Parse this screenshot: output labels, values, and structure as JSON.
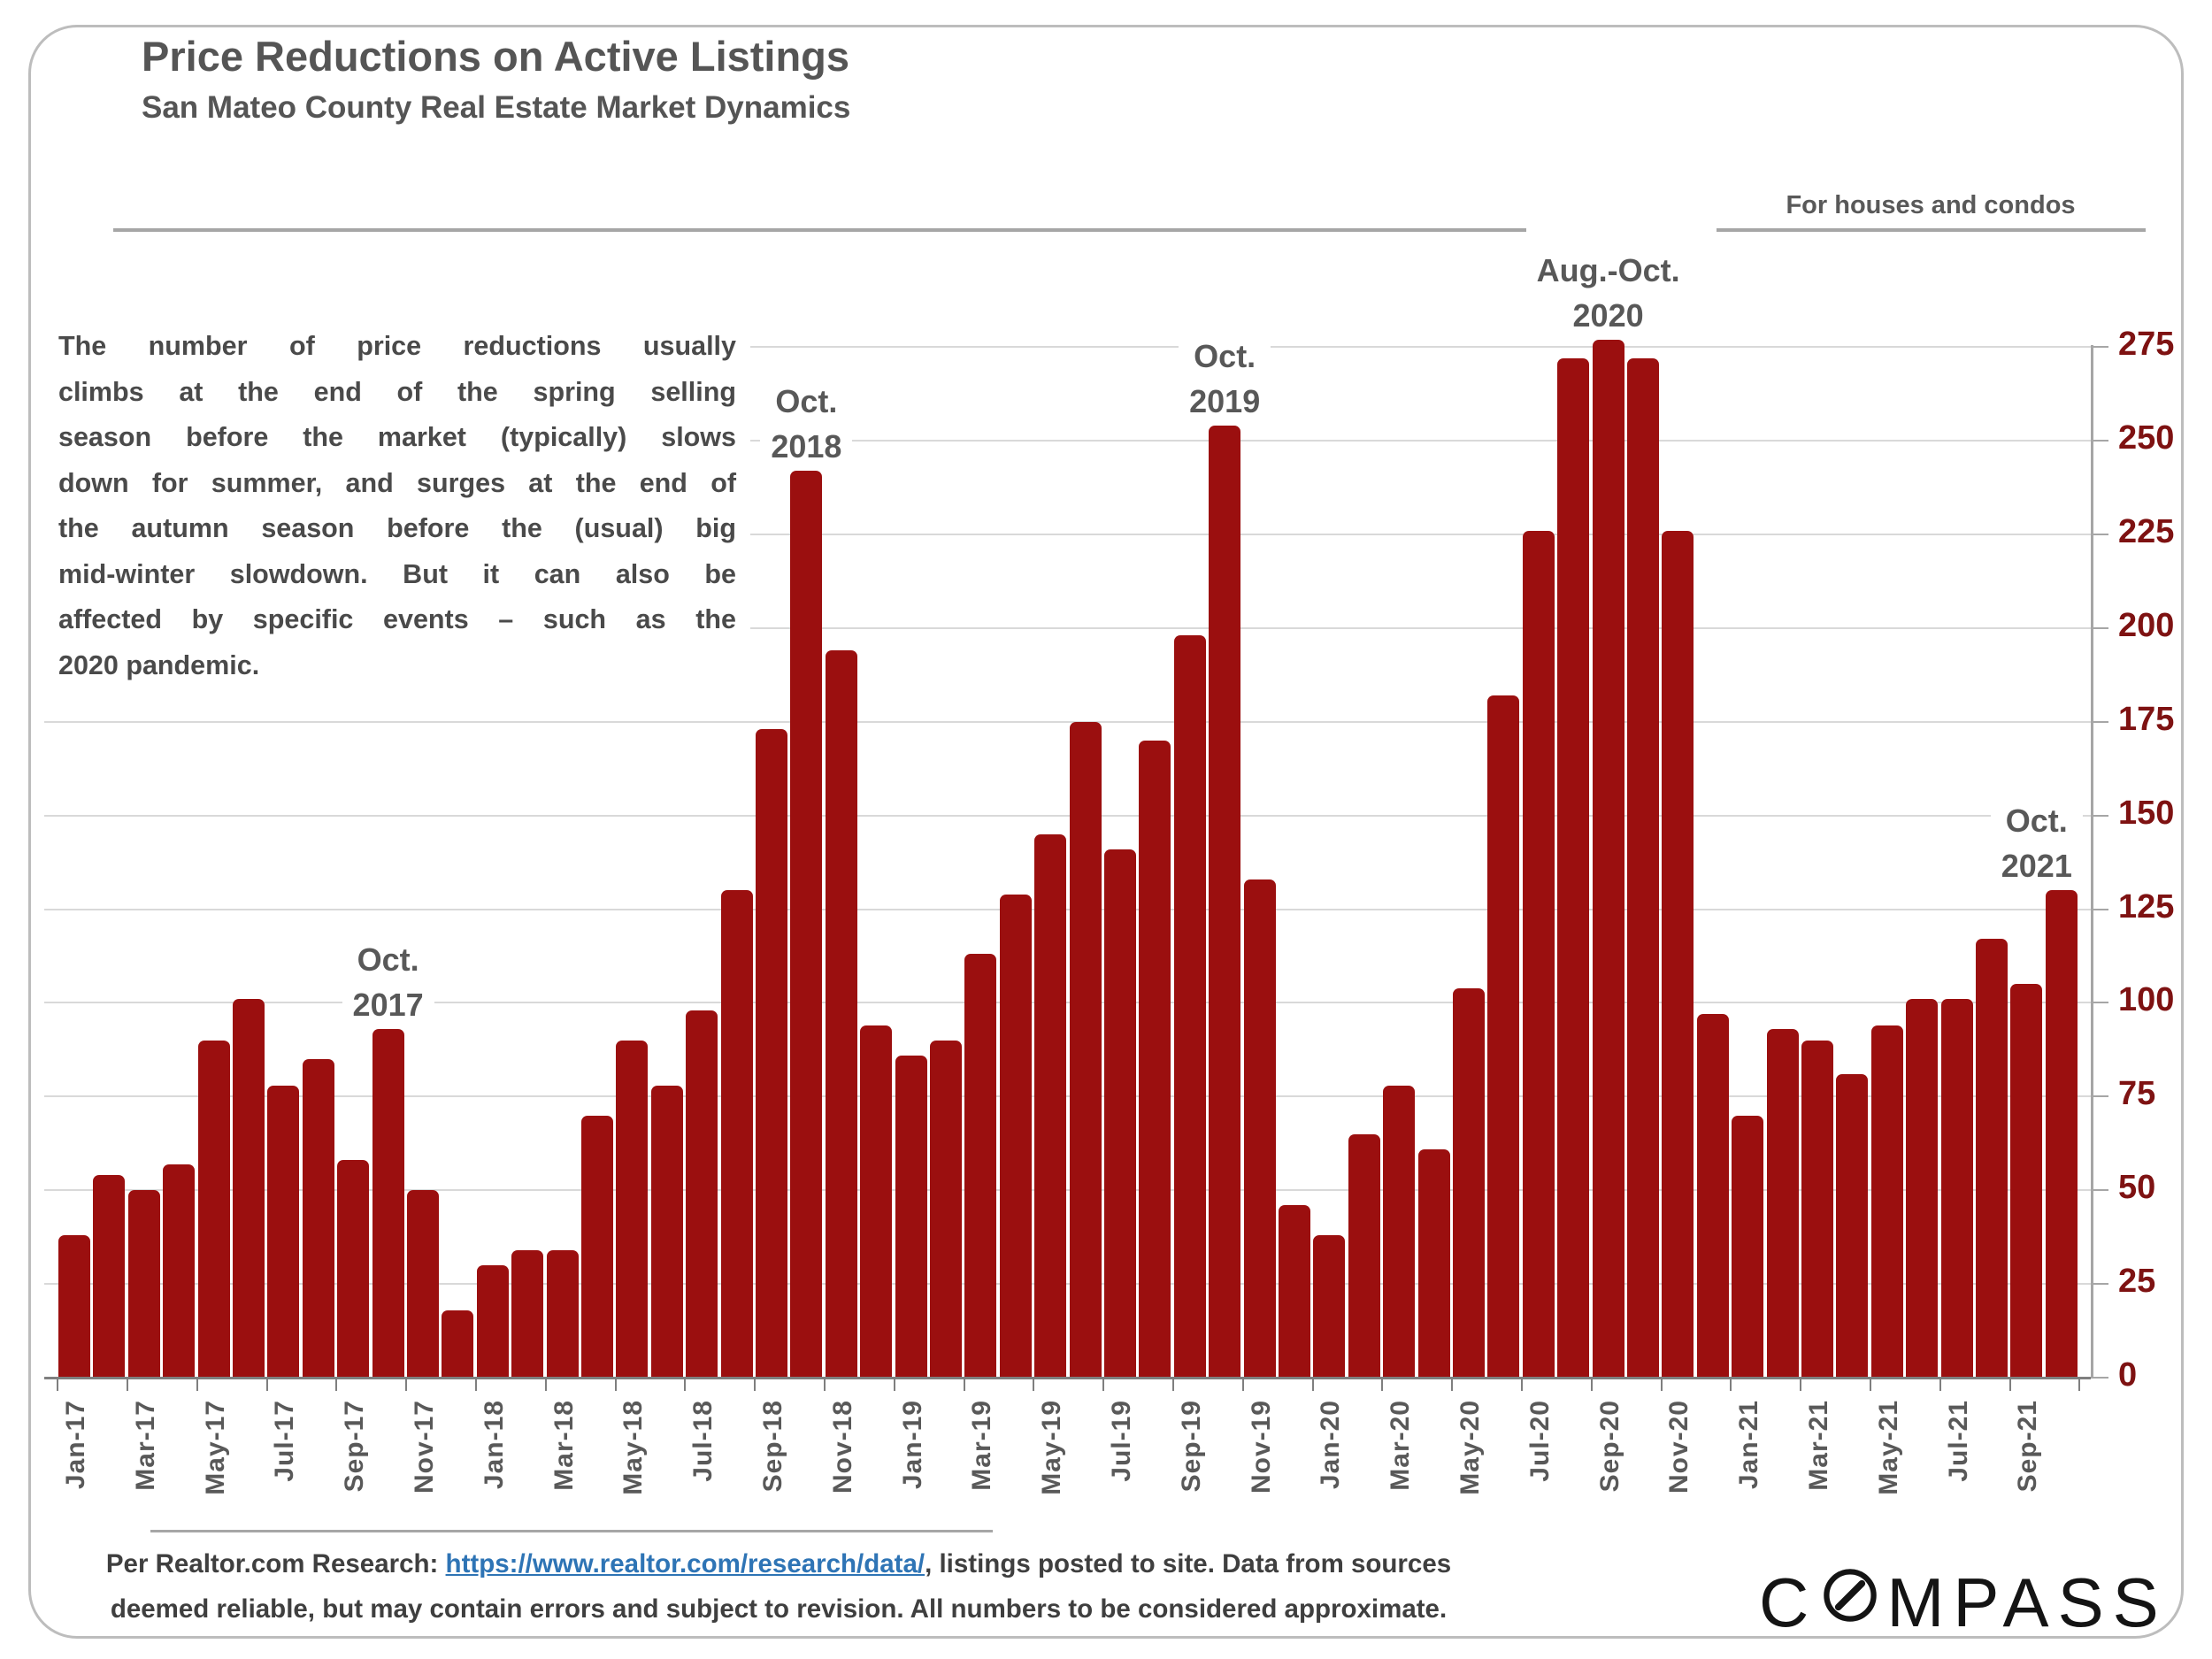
{
  "header": {
    "title": "Price Reductions on Active Listings",
    "subtitle": "San Mateo County Real Estate Market Dynamics",
    "scope_note": "For houses and condos"
  },
  "narrative": {
    "lines": [
      "The number of price reductions usually",
      "climbs at the end of the spring selling",
      "season before the market (typically) slows",
      "down for summer, and surges at the end of",
      "the autumn season before the (usual) big",
      "mid-winter slowdown. But it can also be",
      "affected by specific events – such as the",
      "2020 pandemic."
    ]
  },
  "chart_data": {
    "type": "bar",
    "title": "Price Reductions on Active Listings",
    "xlabel": "",
    "ylabel": "",
    "ylim": [
      0,
      275
    ],
    "ytick_step": 25,
    "grid": "horizontal",
    "legend_position": "none",
    "bar_color": "#9B0F0F",
    "ytick_color": "#7E1212",
    "categories": [
      "Jan-17",
      "Feb-17",
      "Mar-17",
      "Apr-17",
      "May-17",
      "Jun-17",
      "Jul-17",
      "Aug-17",
      "Sep-17",
      "Oct-17",
      "Nov-17",
      "Dec-17",
      "Jan-18",
      "Feb-18",
      "Mar-18",
      "Apr-18",
      "May-18",
      "Jun-18",
      "Jul-18",
      "Aug-18",
      "Sep-18",
      "Oct-18",
      "Nov-18",
      "Dec-18",
      "Jan-19",
      "Feb-19",
      "Mar-19",
      "Apr-19",
      "May-19",
      "Jun-19",
      "Jul-19",
      "Aug-19",
      "Sep-19",
      "Oct-19",
      "Nov-19",
      "Dec-19",
      "Jan-20",
      "Feb-20",
      "Mar-20",
      "Apr-20",
      "May-20",
      "Jun-20",
      "Jul-20",
      "Aug-20",
      "Sep-20",
      "Oct-20",
      "Nov-20",
      "Dec-20",
      "Jan-21",
      "Feb-21",
      "Mar-21",
      "Apr-21",
      "May-21",
      "Jun-21",
      "Jul-21",
      "Aug-21",
      "Sep-21",
      "Oct-21"
    ],
    "values": [
      38,
      54,
      50,
      57,
      90,
      101,
      78,
      85,
      58,
      93,
      50,
      18,
      30,
      34,
      34,
      70,
      90,
      78,
      98,
      130,
      173,
      242,
      194,
      94,
      86,
      90,
      113,
      129,
      145,
      175,
      141,
      170,
      198,
      254,
      133,
      46,
      38,
      65,
      78,
      61,
      104,
      182,
      226,
      272,
      277,
      272,
      226,
      97,
      70,
      93,
      90,
      81,
      94,
      101,
      101,
      117,
      105,
      130
    ],
    "xtick_labels": [
      "Jan-17",
      "Mar-17",
      "May-17",
      "Jul-17",
      "Sep-17",
      "Nov-17",
      "Jan-18",
      "Mar-18",
      "May-18",
      "Jul-18",
      "Sep-18",
      "Nov-18",
      "Jan-19",
      "Mar-19",
      "May-19",
      "Jul-19",
      "Sep-19",
      "Nov-19",
      "Jan-20",
      "Mar-20",
      "May-20",
      "Jul-20",
      "Sep-20",
      "Nov-20",
      "Jan-21",
      "Mar-21",
      "May-21",
      "Jul-21",
      "Sep-21"
    ],
    "annotations": [
      {
        "lines": [
          "Oct.",
          "2017"
        ],
        "month": "Oct-17"
      },
      {
        "lines": [
          "Oct.",
          "2018"
        ],
        "month": "Oct-18"
      },
      {
        "lines": [
          "Oct.",
          "2019"
        ],
        "month": "Oct-19"
      },
      {
        "lines": [
          "Aug.-Oct.",
          "2020"
        ],
        "month": "Sep-20"
      },
      {
        "lines": [
          "Oct.",
          "2021"
        ],
        "month": "Oct-21"
      }
    ]
  },
  "footer": {
    "prefix": "Per Realtor.com Research: ",
    "link_text": "https://www.realtor.com/research/data/",
    "suffix": ", listings posted to site. Data from sources deemed reliable, but may contain errors and subject to revision. All numbers to be considered approximate."
  },
  "logo": {
    "text_start": "C",
    "text_end": "MPASS"
  }
}
